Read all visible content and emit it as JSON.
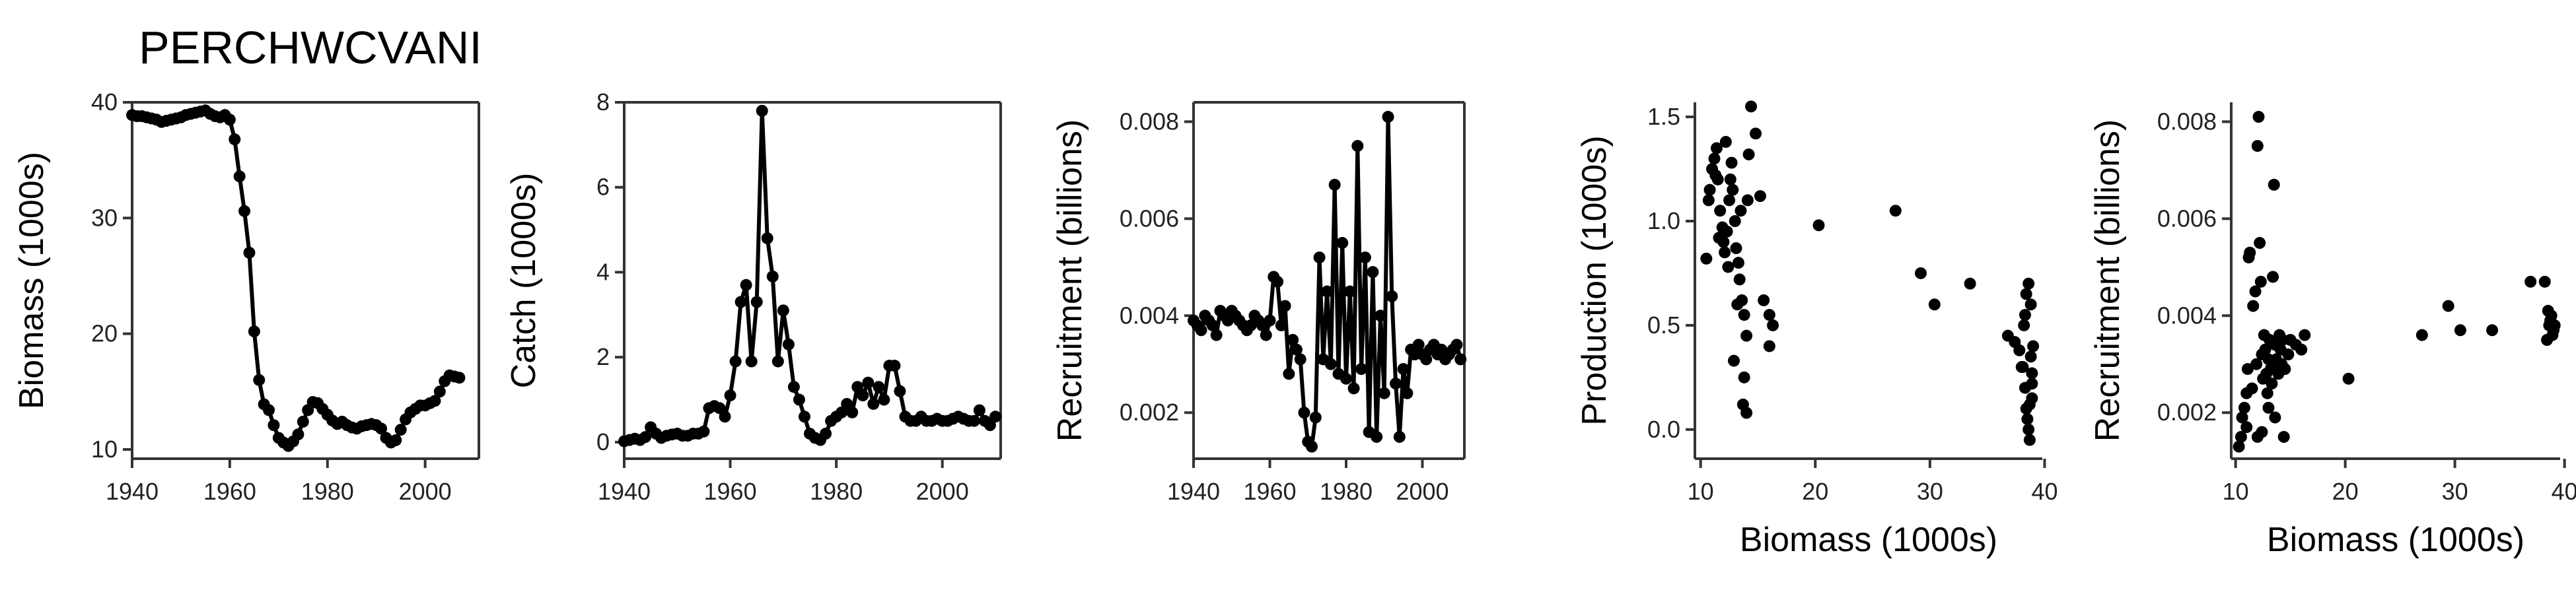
{
  "title": "PERCHWCVANI",
  "colors": {
    "ink": "#000000",
    "axis": "#333333"
  },
  "chart_data": [
    {
      "type": "line",
      "xlabel": "",
      "ylabel": "Biomass (1000s)",
      "xlim": [
        1940,
        2011
      ],
      "ylim": [
        9.2,
        40
      ],
      "xticks": [
        1940,
        1960,
        1980,
        2000
      ],
      "yticks": [
        10,
        20,
        30,
        40
      ],
      "x": [
        1940,
        1941,
        1942,
        1943,
        1944,
        1945,
        1946,
        1947,
        1948,
        1949,
        1950,
        1951,
        1952,
        1953,
        1954,
        1955,
        1956,
        1957,
        1958,
        1959,
        1960,
        1961,
        1962,
        1963,
        1964,
        1965,
        1966,
        1967,
        1968,
        1969,
        1970,
        1971,
        1972,
        1973,
        1974,
        1975,
        1976,
        1977,
        1978,
        1979,
        1980,
        1981,
        1982,
        1983,
        1984,
        1985,
        1986,
        1987,
        1988,
        1989,
        1990,
        1991,
        1992,
        1993,
        1994,
        1995,
        1996,
        1997,
        1998,
        1999,
        2000,
        2001,
        2002,
        2003,
        2004,
        2005,
        2006,
        2007,
        2008,
        2009,
        2010,
        2011
      ],
      "y": [
        38.9,
        38.8,
        38.8,
        38.7,
        38.6,
        38.5,
        38.3,
        38.4,
        38.5,
        38.6,
        38.7,
        38.9,
        39.0,
        39.1,
        39.2,
        39.3,
        39.0,
        38.8,
        38.7,
        38.9,
        38.5,
        36.8,
        33.6,
        30.6,
        27.0,
        20.2,
        16.0,
        13.9,
        13.4,
        12.1,
        11.0,
        10.6,
        10.3,
        10.7,
        11.3,
        12.4,
        13.4,
        14.1,
        14.0,
        13.5,
        13.0,
        12.5,
        12.2,
        12.4,
        12.1,
        11.9,
        11.8,
        12.0,
        12.1,
        12.2,
        12.1,
        11.8,
        11.0,
        10.6,
        10.8,
        11.7,
        12.6,
        13.2,
        13.5,
        13.8,
        13.8,
        14.0,
        14.2,
        15.0,
        15.9,
        16.4,
        16.3,
        16.2,
        null,
        null,
        null,
        null
      ]
    },
    {
      "type": "line",
      "xlabel": "",
      "ylabel": "Catch (1000s)",
      "xlim": [
        1940,
        2011
      ],
      "ylim": [
        -0.39,
        8.0
      ],
      "xticks": [
        1940,
        1960,
        1980,
        2000
      ],
      "yticks": [
        0,
        2,
        4,
        6,
        8
      ],
      "x": [
        1940,
        1941,
        1942,
        1943,
        1944,
        1945,
        1946,
        1947,
        1948,
        1949,
        1950,
        1951,
        1952,
        1953,
        1954,
        1955,
        1956,
        1957,
        1958,
        1959,
        1960,
        1961,
        1962,
        1963,
        1964,
        1965,
        1966,
        1967,
        1968,
        1969,
        1970,
        1971,
        1972,
        1973,
        1974,
        1975,
        1976,
        1977,
        1978,
        1979,
        1980,
        1981,
        1982,
        1983,
        1984,
        1985,
        1986,
        1987,
        1988,
        1989,
        1990,
        1991,
        1992,
        1993,
        1994,
        1995,
        1996,
        1997,
        1998,
        1999,
        2000,
        2001,
        2002,
        2003,
        2004,
        2005,
        2006,
        2007,
        2008,
        2009,
        2010
      ],
      "y": [
        0.02,
        0.05,
        0.08,
        0.05,
        0.12,
        0.35,
        0.2,
        0.1,
        0.15,
        0.18,
        0.2,
        0.15,
        0.15,
        0.2,
        0.2,
        0.25,
        0.8,
        0.85,
        0.8,
        0.6,
        1.1,
        1.9,
        3.3,
        3.7,
        1.9,
        3.3,
        7.8,
        4.8,
        3.9,
        1.9,
        3.1,
        2.3,
        1.3,
        1.0,
        0.6,
        0.2,
        0.1,
        0.05,
        0.2,
        0.5,
        0.6,
        0.7,
        0.9,
        0.7,
        1.3,
        1.1,
        1.4,
        0.9,
        1.3,
        1.0,
        1.8,
        1.8,
        1.2,
        0.6,
        0.5,
        0.5,
        0.6,
        0.5,
        0.5,
        0.55,
        0.5,
        0.5,
        0.55,
        0.6,
        0.55,
        0.5,
        0.5,
        0.75,
        0.5,
        0.4,
        0.6
      ]
    },
    {
      "type": "line",
      "xlabel": "",
      "ylabel": "Recruitment (billions)",
      "xlim": [
        1940,
        2011
      ],
      "ylim": [
        0.00105,
        0.0084
      ],
      "xticks": [
        1940,
        1960,
        1980,
        2000
      ],
      "yticks": [
        0.002,
        0.004,
        0.006,
        0.008
      ],
      "x": [
        1940,
        1941,
        1942,
        1943,
        1944,
        1945,
        1946,
        1947,
        1948,
        1949,
        1950,
        1951,
        1952,
        1953,
        1954,
        1955,
        1956,
        1957,
        1958,
        1959,
        1960,
        1961,
        1962,
        1963,
        1964,
        1965,
        1966,
        1967,
        1968,
        1969,
        1970,
        1971,
        1972,
        1973,
        1974,
        1975,
        1976,
        1977,
        1978,
        1979,
        1980,
        1981,
        1982,
        1983,
        1984,
        1985,
        1986,
        1987,
        1988,
        1989,
        1990,
        1991,
        1992,
        1993,
        1994,
        1995,
        1996,
        1997,
        1998,
        1999,
        2000,
        2001,
        2002,
        2003,
        2004,
        2005,
        2006,
        2007,
        2008,
        2009,
        2010
      ],
      "y": [
        0.0039,
        0.0038,
        0.0037,
        0.004,
        0.0039,
        0.0038,
        0.0036,
        0.0041,
        0.004,
        0.0039,
        0.0041,
        0.004,
        0.0039,
        0.0038,
        0.0037,
        0.0038,
        0.004,
        0.0039,
        0.0038,
        0.0036,
        0.0039,
        0.0048,
        0.0047,
        0.0038,
        0.0042,
        0.0028,
        0.0035,
        0.0033,
        0.0031,
        0.002,
        0.0014,
        0.0013,
        0.0019,
        0.0052,
        0.0031,
        0.0045,
        0.003,
        0.0067,
        0.0028,
        0.0055,
        0.0027,
        0.0045,
        0.0025,
        0.0075,
        0.0029,
        0.0052,
        0.0016,
        0.0049,
        0.0015,
        0.004,
        0.0024,
        0.0081,
        0.0044,
        0.0026,
        0.0015,
        0.0029,
        0.0024,
        0.0033,
        0.0032,
        0.0034,
        0.0032,
        0.0031,
        0.0033,
        0.0034,
        0.0032,
        0.0033,
        0.0031,
        0.0032,
        0.0033,
        0.0034,
        0.0031
      ]
    },
    {
      "type": "scatter",
      "xlabel": "Biomass (1000s)",
      "ylabel": "Production (1000s)",
      "xlim": [
        9.5,
        39.8
      ],
      "ylim": [
        -0.14,
        1.57
      ],
      "xticks": [
        10,
        20,
        30,
        40
      ],
      "yticks": [
        0.0,
        0.5,
        1.0,
        1.5
      ],
      "x": [
        10.5,
        10.7,
        11.0,
        11.2,
        11.4,
        11.5,
        11.7,
        11.9,
        12.0,
        12.1,
        12.3,
        12.5,
        12.6,
        12.8,
        13.0,
        13.1,
        13.3,
        13.4,
        13.6,
        13.8,
        14.0,
        14.2,
        14.4,
        14.8,
        15.2,
        16.0,
        16.3,
        10.8,
        11.3,
        12.2,
        12.7,
        13.5,
        14.1,
        11.6,
        12.4,
        13.2,
        13.8,
        14.0,
        15.5,
        16.0,
        12.9,
        13.7,
        20.3,
        27.0,
        29.2,
        30.4,
        33.5,
        36.8,
        37.4,
        37.8,
        38.1,
        38.3,
        38.4,
        38.5,
        38.6,
        38.7,
        38.8,
        38.9,
        38.9,
        39.0,
        38.8,
        38.6,
        38.4,
        38.2,
        38.0,
        38.7,
        38.9,
        38.3
      ],
      "y": [
        0.82,
        1.1,
        1.25,
        1.3,
        1.35,
        1.2,
        1.05,
        0.97,
        0.9,
        0.85,
        0.95,
        1.1,
        1.2,
        1.15,
        1.0,
        0.87,
        0.8,
        0.72,
        0.62,
        0.55,
        0.45,
        1.32,
        1.55,
        1.42,
        1.12,
        0.4,
        0.5,
        1.15,
        1.22,
        1.38,
        1.28,
        1.05,
        1.1,
        0.92,
        0.78,
        0.6,
        0.25,
        0.08,
        0.62,
        0.55,
        0.33,
        0.12,
        0.98,
        1.05,
        0.75,
        0.6,
        0.7,
        0.45,
        0.42,
        0.38,
        0.3,
        0.2,
        0.1,
        0.05,
        0.0,
        -0.05,
        0.35,
        0.22,
        0.15,
        0.4,
        0.6,
        0.7,
        0.65,
        0.5,
        0.3,
        0.12,
        0.27,
        0.55
      ]
    },
    {
      "type": "scatter",
      "xlabel": "Biomass (1000s)",
      "ylabel": "Recruitment (billions)",
      "xlim": [
        9.6,
        39.6
      ],
      "ylim": [
        0.00105,
        0.0084
      ],
      "xticks": [
        10,
        20,
        30,
        40
      ],
      "yticks": [
        0.002,
        0.004,
        0.006,
        0.008
      ],
      "x": [
        10.3,
        10.5,
        10.6,
        10.8,
        11.0,
        11.0,
        11.1,
        11.2,
        11.3,
        11.5,
        11.6,
        11.8,
        11.9,
        12.0,
        12.1,
        12.2,
        12.3,
        12.4,
        12.5,
        12.6,
        12.7,
        12.8,
        12.9,
        13.0,
        13.1,
        13.2,
        13.3,
        13.4,
        13.5,
        13.6,
        13.7,
        13.8,
        13.9,
        14.0,
        14.1,
        14.2,
        14.3,
        14.5,
        14.8,
        15.0,
        15.5,
        16.0,
        16.3,
        12.0,
        12.4,
        13.0,
        13.6,
        14.4,
        20.3,
        27.0,
        29.4,
        30.5,
        33.4,
        36.9,
        38.2,
        38.5,
        38.6,
        38.8,
        38.9,
        39.0,
        39.1,
        38.7,
        38.4
      ],
      "y": [
        0.0013,
        0.0015,
        0.0019,
        0.0021,
        0.0017,
        0.0024,
        0.0029,
        0.0052,
        0.0053,
        0.0025,
        0.0042,
        0.0045,
        0.003,
        0.0075,
        0.0081,
        0.0055,
        0.0047,
        0.0032,
        0.0027,
        0.0036,
        0.0033,
        0.0028,
        0.0024,
        0.0031,
        0.0035,
        0.0029,
        0.0026,
        0.0048,
        0.0067,
        0.0034,
        0.0031,
        0.003,
        0.0028,
        0.0036,
        0.0033,
        0.003,
        0.0035,
        0.0029,
        0.0032,
        0.0035,
        0.0034,
        0.0033,
        0.0036,
        0.0015,
        0.0016,
        0.0021,
        0.0019,
        0.0015,
        0.0027,
        0.0036,
        0.0042,
        0.0037,
        0.0037,
        0.0047,
        0.0047,
        0.0041,
        0.0038,
        0.004,
        0.0036,
        0.0037,
        0.0038,
        0.0039,
        0.0035
      ]
    }
  ]
}
